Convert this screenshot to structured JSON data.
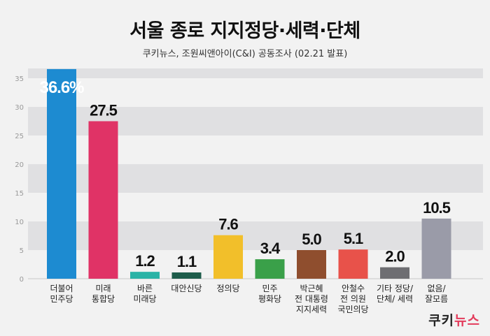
{
  "header": {
    "title": "서울 종로 지지정당·세력·단체",
    "subtitle": "쿠키뉴스, 조원씨앤아이(C&I) 공동조사 (02.21 발표)"
  },
  "brand": {
    "part1": "쿠키",
    "part2": "뉴스"
  },
  "chart_data": {
    "type": "bar",
    "title": "서울 종로 지지정당·세력·단체",
    "subtitle": "쿠키뉴스, 조원씨앤아이(C&I) 공동조사 (02.21 발표)",
    "categories": [
      "더불어\n민주당",
      "미래\n통합당",
      "바른\n미래당",
      "대안신당",
      "정의당",
      "민주\n평화당",
      "박근혜\n전 대통령\n지지세력",
      "안철수\n전 의원\n국민의당",
      "기타 정당/\n단체/ 세력",
      "없음/\n잘모름"
    ],
    "values": [
      36.6,
      27.5,
      1.2,
      1.1,
      7.6,
      3.4,
      5.0,
      5.1,
      2.0,
      10.5
    ],
    "value_labels": [
      "36.6%",
      "27.5",
      "1.2",
      "1.1",
      "7.6",
      "3.4",
      "5.0",
      "5.1",
      "2.0",
      "10.5"
    ],
    "colors": [
      "#1d8bd1",
      "#e03366",
      "#2bb3a6",
      "#1d5c4a",
      "#f2bf2a",
      "#3aa049",
      "#8f4e2e",
      "#e8524a",
      "#6e6e72",
      "#9a9ba8"
    ],
    "yticks": [
      0,
      5,
      10,
      15,
      20,
      25,
      30,
      35
    ],
    "ylim": [
      0,
      36.6
    ],
    "grid": "alternating bands"
  }
}
